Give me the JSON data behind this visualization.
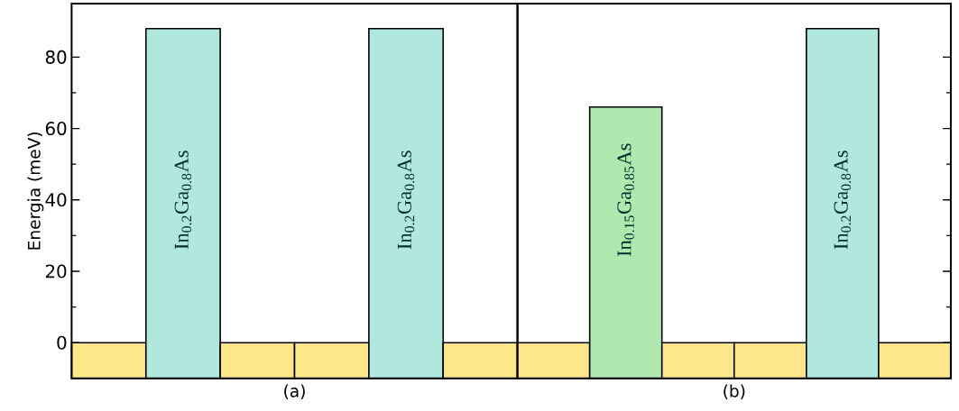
{
  "chart_data": [
    {
      "type": "bar",
      "xlabel": "(a)",
      "ylabel": "Energia (meV)",
      "categories": [
        null,
        "In$_{0.2}$Ga$_{0.8}$As",
        null,
        null,
        "In$_{0.2}$Ga$_{0.8}$As",
        null
      ],
      "base": [
        -10,
        -10,
        -10,
        -10,
        -10,
        -10
      ],
      "values": [
        10,
        98,
        10,
        10,
        98,
        10
      ],
      "colors": [
        "#fee68a",
        "#b0e8de",
        "#fee68a",
        "#fee68a",
        "#b0e8de",
        "#fee68a"
      ],
      "ylim": [
        -10,
        95
      ],
      "yticks": [
        0,
        20,
        40,
        60,
        80
      ]
    },
    {
      "type": "bar",
      "xlabel": "(b)",
      "categories": [
        null,
        "In$_{0.15}$Ga$_{0.85}$As",
        null,
        null,
        "In$_{0.2}$Ga$_{0.8}$As",
        null
      ],
      "base": [
        -10,
        -10,
        -10,
        -10,
        -10,
        -10
      ],
      "values": [
        10,
        76,
        10,
        10,
        98,
        10
      ],
      "colors": [
        "#fee68a",
        "#b0e8b0",
        "#fee68a",
        "#fee68a",
        "#b0e8de",
        "#fee68a"
      ],
      "ylim": [
        -10,
        95
      ],
      "yticks": [
        0,
        20,
        40,
        60,
        80
      ],
      "tick_labels": "x"
    }
  ]
}
